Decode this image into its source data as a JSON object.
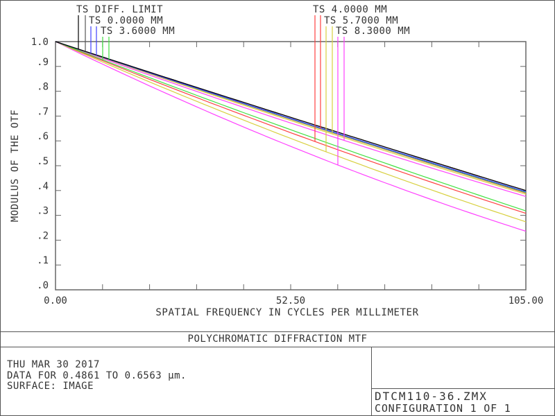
{
  "chart_data": {
    "type": "line",
    "title": "POLYCHROMATIC DIFFRACTION MTF",
    "xlabel": "SPATIAL FREQUENCY IN CYCLES PER MILLIMETER",
    "ylabel": "MODULUS OF THE OTF",
    "xlim": [
      0,
      105
    ],
    "ylim": [
      0,
      1
    ],
    "x_tick_labels": [
      "0.00",
      "52.50",
      "105.00"
    ],
    "y_tick_labels": [
      ".0",
      ".1",
      ".2",
      ".3",
      ".4",
      ".5",
      ".6",
      ".7",
      ".8",
      ".9",
      "1.0"
    ],
    "grid": false,
    "legend_placement": "top",
    "x": [
      0,
      52.5,
      105
    ],
    "series": [
      {
        "name": "TS DIFF. LIMIT",
        "component": "T",
        "color": "#000000",
        "values": [
          1.0,
          0.695,
          0.4
        ]
      },
      {
        "name": "TS DIFF. LIMIT",
        "component": "S",
        "color": "#555555",
        "values": [
          1.0,
          0.695,
          0.4
        ]
      },
      {
        "name": "TS 0.0000 MM",
        "component": "T",
        "color": "#4040ff",
        "values": [
          1.0,
          0.69,
          0.395
        ]
      },
      {
        "name": "TS 0.0000 MM",
        "component": "S",
        "color": "#4040ff",
        "values": [
          1.0,
          0.69,
          0.395
        ]
      },
      {
        "name": "TS 3.6000 MM",
        "component": "T",
        "color": "#40e040",
        "values": [
          1.0,
          0.645,
          0.318
        ]
      },
      {
        "name": "TS 3.6000 MM",
        "component": "S",
        "color": "#40e040",
        "values": [
          1.0,
          0.688,
          0.392
        ]
      },
      {
        "name": "TS 4.0000 MM",
        "component": "T",
        "color": "#ff4040",
        "values": [
          1.0,
          0.633,
          0.308
        ]
      },
      {
        "name": "TS 4.0000 MM",
        "component": "S",
        "color": "#ff4040",
        "values": [
          1.0,
          0.687,
          0.39
        ]
      },
      {
        "name": "TS 5.7000 MM",
        "component": "T",
        "color": "#d8d040",
        "values": [
          1.0,
          0.61,
          0.274
        ]
      },
      {
        "name": "TS 5.7000 MM",
        "component": "S",
        "color": "#d8d040",
        "values": [
          1.0,
          0.682,
          0.385
        ]
      },
      {
        "name": "TS 8.3000 MM",
        "component": "T",
        "color": "#ff40ff",
        "values": [
          1.0,
          0.578,
          0.236
        ]
      },
      {
        "name": "TS 8.3000 MM",
        "component": "S",
        "color": "#ff40ff",
        "values": [
          1.0,
          0.672,
          0.376
        ]
      }
    ]
  },
  "footer": {
    "date": "THU MAR 30 2017",
    "data_range": "DATA FOR 0.4861 TO 0.6563 µm.",
    "surface": "SURFACE: IMAGE",
    "filename": "DTCM110-36.ZMX",
    "configuration": "CONFIGURATION 1 OF 1"
  }
}
